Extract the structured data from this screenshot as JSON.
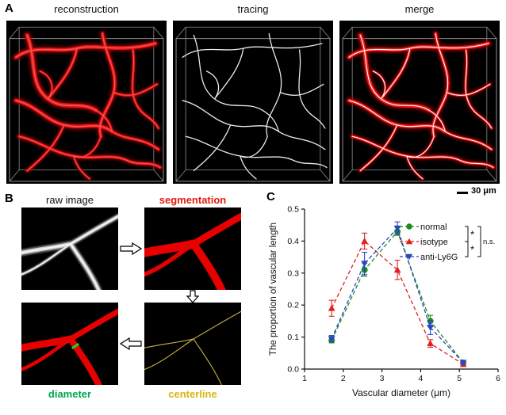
{
  "panel_a": {
    "label": "A",
    "titles": {
      "reconstruction": "reconstruction",
      "tracing": "tracing",
      "merge": "merge"
    },
    "scale_bar_label": "30 μm"
  },
  "panel_b": {
    "label": "B",
    "titles": {
      "raw": "raw image",
      "segmentation": "segmentation"
    },
    "captions": {
      "diameter": "diameter",
      "centerline": "centerline"
    },
    "colors": {
      "segmentation_label": "#e11b12",
      "diameter_label": "#00a64f",
      "centerline_label": "#d8b60e",
      "vessel_red": "#e60000",
      "centerline_yellow": "#c9b73c",
      "diameter_tick_green": "#1ad41a"
    }
  },
  "panel_c": {
    "label": "C"
  },
  "chart_data": {
    "type": "line",
    "title": "",
    "xlabel": "Vascular diameter (μm)",
    "ylabel": "The proportion of vascular length",
    "xlim": [
      1,
      6
    ],
    "ylim": [
      0,
      0.5
    ],
    "xticks": [
      1,
      2,
      3,
      4,
      5,
      6
    ],
    "yticks": [
      0,
      0.1,
      0.2,
      0.3,
      0.4,
      0.5
    ],
    "grid": false,
    "legend_position": "top-right",
    "x": [
      1.7,
      2.55,
      3.4,
      4.25,
      5.1
    ],
    "series": [
      {
        "name": "normal",
        "color": "#1e8a1e",
        "marker": "circle",
        "line_style": "dashed",
        "values": [
          0.09,
          0.31,
          0.43,
          0.15,
          0.02
        ],
        "errors": [
          0.008,
          0.02,
          0.012,
          0.018,
          0.006
        ]
      },
      {
        "name": "isotype",
        "color": "#e02020",
        "marker": "triangle-up",
        "line_style": "dashed",
        "values": [
          0.19,
          0.4,
          0.31,
          0.08,
          0.015
        ],
        "errors": [
          0.025,
          0.025,
          0.03,
          0.012,
          0.006
        ]
      },
      {
        "name": "anti-Ly6G",
        "color": "#2a46c8",
        "marker": "triangle-down",
        "line_style": "dashed",
        "values": [
          0.095,
          0.33,
          0.44,
          0.13,
          0.02
        ],
        "errors": [
          0.01,
          0.035,
          0.02,
          0.022,
          0.006
        ]
      }
    ],
    "significance": [
      {
        "between": [
          "normal",
          "isotype"
        ],
        "label": "*",
        "level": 0
      },
      {
        "between": [
          "isotype",
          "anti-Ly6G"
        ],
        "label": "*",
        "level": 0
      },
      {
        "between": [
          "normal",
          "anti-Ly6G"
        ],
        "label": "n.s.",
        "level": 1
      }
    ]
  }
}
